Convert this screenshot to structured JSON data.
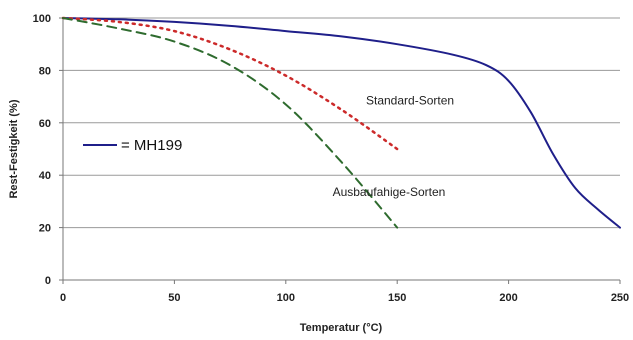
{
  "chart_data": {
    "type": "line",
    "xlabel": "Temperatur (°C)",
    "ylabel": "Rest-Festigkeit (%)",
    "xlim": [
      0,
      250
    ],
    "ylim": [
      0,
      100
    ],
    "x_ticks": [
      0,
      50,
      100,
      150,
      200,
      250
    ],
    "y_ticks": [
      0,
      20,
      40,
      60,
      80,
      100
    ],
    "grid": "horizontal",
    "series": [
      {
        "name": "MH199",
        "color": "#1f1f8a",
        "style": "solid",
        "x": [
          0,
          25,
          50,
          75,
          100,
          125,
          150,
          175,
          190,
          200,
          210,
          220,
          230,
          240,
          250
        ],
        "y": [
          100,
          99.5,
          98.5,
          97,
          95,
          93,
          90,
          86,
          82,
          76,
          64,
          48,
          35,
          27,
          20
        ]
      },
      {
        "name": "Standard-Sorten",
        "color": "#cc2a2a",
        "style": "dotted",
        "x": [
          0,
          25,
          50,
          75,
          100,
          125,
          150
        ],
        "y": [
          100,
          98.5,
          95,
          88,
          78,
          65,
          50
        ]
      },
      {
        "name": "Ausbaufahige-Sorten",
        "color": "#2e6b2e",
        "style": "dashed",
        "x": [
          0,
          25,
          50,
          75,
          100,
          125,
          150
        ],
        "y": [
          100,
          96,
          91,
          82,
          67,
          45,
          20
        ]
      }
    ],
    "annotations": [
      {
        "text": "Standard-Sorten",
        "x": 136,
        "y": 67
      },
      {
        "text": "Ausbaufahige-Sorten",
        "x": 121,
        "y": 32
      }
    ],
    "legend": {
      "entries": [
        "MH199"
      ],
      "placement": "left"
    }
  }
}
